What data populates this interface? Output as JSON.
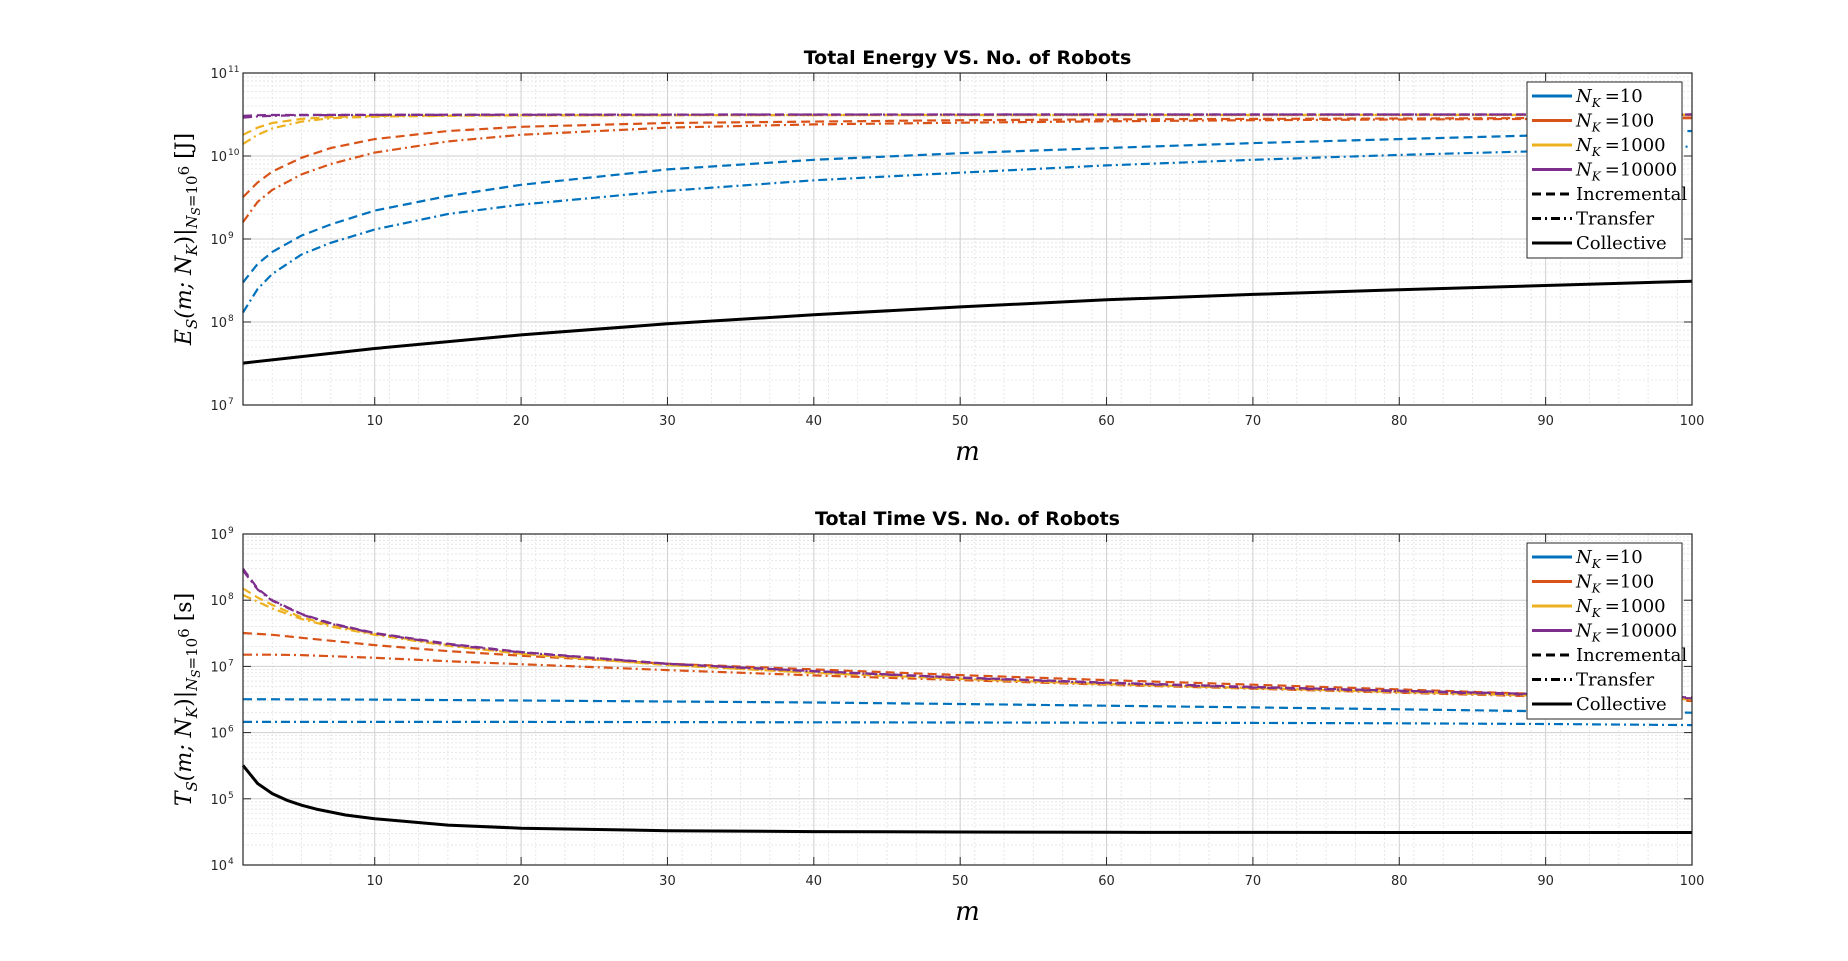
{
  "chart_data": [
    {
      "type": "line",
      "title": "Total Energy VS. No. of Robots",
      "xlabel": "m",
      "ylabel": "E_S(m; N_K)|_{N_S=10^6} [J]",
      "ylabel_parts": {
        "symbol": "E",
        "sub": "S",
        "args": "(m; N",
        "argsub": "K",
        "close": ")|",
        "cond": "N",
        "condsub": "S",
        "condeq": "=10",
        "condexp": "6",
        "unit": "[J]"
      },
      "xlim": [
        1,
        100
      ],
      "ylim_log10": [
        7,
        11
      ],
      "yscale": "log",
      "grid": true,
      "xticks": [
        "10",
        "20",
        "30",
        "40",
        "50",
        "60",
        "70",
        "80",
        "90",
        "100"
      ],
      "yticks": [
        {
          "base": "10",
          "exp": "7"
        },
        {
          "base": "10",
          "exp": "8"
        },
        {
          "base": "10",
          "exp": "9"
        },
        {
          "base": "10",
          "exp": "10"
        },
        {
          "base": "10",
          "exp": "11"
        }
      ],
      "legend_position": "top-right",
      "legend": [
        {
          "label_prefix": "N",
          "label_sub": "K",
          "label_value": "=10",
          "style": "solid",
          "color": "#0072BD"
        },
        {
          "label_prefix": "N",
          "label_sub": "K",
          "label_value": "=100",
          "style": "solid",
          "color": "#D95319"
        },
        {
          "label_prefix": "N",
          "label_sub": "K",
          "label_value": "=1000",
          "style": "solid",
          "color": "#EDB120"
        },
        {
          "label_prefix": "N",
          "label_sub": "K",
          "label_value": "=10000",
          "style": "solid",
          "color": "#7E2F8E"
        },
        {
          "label": "Incremental",
          "style": "dashed",
          "color": "#000000"
        },
        {
          "label": "Transfer",
          "style": "dashdot",
          "color": "#000000"
        },
        {
          "label": "Collective",
          "style": "solid",
          "color": "#000000"
        }
      ],
      "series": [
        {
          "group": "N_K=10",
          "method": "Incremental",
          "color": "#0072BD",
          "style": "dashed",
          "x": [
            1,
            2,
            3,
            5,
            7,
            10,
            15,
            20,
            30,
            40,
            50,
            60,
            70,
            80,
            90,
            100
          ],
          "y": [
            300000000,
            500000000,
            700000000,
            1100000000,
            1500000000,
            2200000000,
            3300000000,
            4500000000,
            6900000000,
            9000000000,
            10800000000,
            12500000000,
            14300000000,
            16000000000,
            17800000000,
            20000000000
          ]
        },
        {
          "group": "N_K=10",
          "method": "Transfer",
          "color": "#0072BD",
          "style": "dashdot",
          "x": [
            1,
            2,
            3,
            5,
            7,
            10,
            15,
            20,
            30,
            40,
            50,
            60,
            70,
            80,
            90,
            100
          ],
          "y": [
            130000000,
            250000000,
            380000000,
            650000000,
            900000000,
            1300000000,
            2000000000,
            2600000000,
            3800000000,
            5100000000,
            6300000000,
            7700000000,
            9000000000,
            10300000000,
            11500000000,
            13000000000
          ]
        },
        {
          "group": "N_K=100",
          "method": "Incremental",
          "color": "#D95319",
          "style": "dashed",
          "x": [
            1,
            2,
            3,
            5,
            7,
            10,
            15,
            20,
            30,
            40,
            50,
            60,
            70,
            80,
            90,
            100
          ],
          "y": [
            3200000000,
            4800000000,
            6500000000,
            9500000000,
            12500000000,
            16000000000,
            20000000000,
            22500000000,
            25000000000,
            26000000000,
            27000000000,
            27600000000,
            28000000000,
            28300000000,
            28600000000,
            29000000000
          ]
        },
        {
          "group": "N_K=100",
          "method": "Transfer",
          "color": "#D95319",
          "style": "dashdot",
          "x": [
            1,
            2,
            3,
            5,
            7,
            10,
            15,
            20,
            30,
            40,
            50,
            60,
            70,
            80,
            90,
            100
          ],
          "y": [
            1600000000,
            2800000000,
            3900000000,
            6000000000,
            8000000000,
            11000000000,
            15000000000,
            18000000000,
            22000000000,
            24000000000,
            25200000000,
            26200000000,
            27000000000,
            27500000000,
            28000000000,
            28500000000
          ]
        },
        {
          "group": "N_K=1000",
          "method": "Incremental",
          "color": "#EDB120",
          "style": "dashed",
          "x": [
            1,
            2,
            3,
            5,
            7,
            10,
            15,
            20,
            30,
            40,
            50,
            60,
            70,
            80,
            90,
            100
          ],
          "y": [
            18000000000,
            22000000000,
            25000000000,
            28000000000,
            29500000000,
            30300000000,
            30800000000,
            31000000000,
            31100000000,
            31200000000,
            31200000000,
            31200000000,
            31300000000,
            31300000000,
            31300000000,
            31300000000
          ]
        },
        {
          "group": "N_K=1000",
          "method": "Transfer",
          "color": "#EDB120",
          "style": "dashdot",
          "x": [
            1,
            2,
            3,
            5,
            7,
            10,
            15,
            20,
            30,
            40,
            50,
            60,
            70,
            80,
            90,
            100
          ],
          "y": [
            14000000000,
            18000000000,
            21500000000,
            26000000000,
            28500000000,
            29800000000,
            30500000000,
            30800000000,
            31000000000,
            31100000000,
            31200000000,
            31200000000,
            31200000000,
            31300000000,
            31300000000,
            31300000000
          ]
        },
        {
          "group": "N_K=10000",
          "method": "Incremental",
          "color": "#7E2F8E",
          "style": "dashed",
          "x": [
            1,
            2,
            3,
            5,
            10,
            20,
            40,
            60,
            80,
            100
          ],
          "y": [
            30500000000,
            31000000000,
            31200000000,
            31300000000,
            31400000000,
            31500000000,
            31600000000,
            31600000000,
            31600000000,
            31600000000
          ]
        },
        {
          "group": "N_K=10000",
          "method": "Transfer",
          "color": "#7E2F8E",
          "style": "dashdot",
          "x": [
            1,
            2,
            3,
            5,
            10,
            20,
            40,
            60,
            80,
            100
          ],
          "y": [
            29000000000,
            30000000000,
            30500000000,
            31000000000,
            31300000000,
            31400000000,
            31500000000,
            31600000000,
            31600000000,
            31600000000
          ]
        },
        {
          "group": "all",
          "method": "Collective",
          "color": "#000000",
          "style": "solid",
          "x": [
            1,
            10,
            20,
            30,
            40,
            50,
            60,
            70,
            80,
            90,
            100
          ],
          "y": [
            32000000,
            48000000,
            70000000,
            95000000,
            122000000,
            152000000,
            185000000,
            215000000,
            245000000,
            275000000,
            310000000
          ]
        }
      ]
    },
    {
      "type": "line",
      "title": "Total Time VS. No. of Robots",
      "xlabel": "m",
      "ylabel": "T_S(m; N_K)|_{N_S=10^6} [s]",
      "ylabel_parts": {
        "symbol": "T",
        "sub": "S",
        "args": "(m; N",
        "argsub": "K",
        "close": ")|",
        "cond": "N",
        "condsub": "S",
        "condeq": "=10",
        "condexp": "6",
        "unit": "[s]"
      },
      "xlim": [
        1,
        100
      ],
      "ylim_log10": [
        4,
        9
      ],
      "yscale": "log",
      "grid": true,
      "xticks": [
        "10",
        "20",
        "30",
        "40",
        "50",
        "60",
        "70",
        "80",
        "90",
        "100"
      ],
      "yticks": [
        {
          "base": "10",
          "exp": "4"
        },
        {
          "base": "10",
          "exp": "5"
        },
        {
          "base": "10",
          "exp": "6"
        },
        {
          "base": "10",
          "exp": "7"
        },
        {
          "base": "10",
          "exp": "8"
        },
        {
          "base": "10",
          "exp": "9"
        }
      ],
      "legend_position": "top-right",
      "legend": [
        {
          "label_prefix": "N",
          "label_sub": "K",
          "label_value": "=10",
          "style": "solid",
          "color": "#0072BD"
        },
        {
          "label_prefix": "N",
          "label_sub": "K",
          "label_value": "=100",
          "style": "solid",
          "color": "#D95319"
        },
        {
          "label_prefix": "N",
          "label_sub": "K",
          "label_value": "=1000",
          "style": "solid",
          "color": "#EDB120"
        },
        {
          "label_prefix": "N",
          "label_sub": "K",
          "label_value": "=10000",
          "style": "solid",
          "color": "#7E2F8E"
        },
        {
          "label": "Incremental",
          "style": "dashed",
          "color": "#000000"
        },
        {
          "label": "Transfer",
          "style": "dashdot",
          "color": "#000000"
        },
        {
          "label": "Collective",
          "style": "solid",
          "color": "#000000"
        }
      ],
      "series": [
        {
          "group": "N_K=10",
          "method": "Incremental",
          "color": "#0072BD",
          "style": "dashed",
          "x": [
            1,
            10,
            20,
            30,
            40,
            50,
            60,
            70,
            80,
            90,
            100
          ],
          "y": [
            3200000,
            3150000,
            3050000,
            2950000,
            2850000,
            2700000,
            2550000,
            2400000,
            2250000,
            2100000,
            2000000
          ]
        },
        {
          "group": "N_K=10",
          "method": "Transfer",
          "color": "#0072BD",
          "style": "dashdot",
          "x": [
            1,
            10,
            20,
            30,
            40,
            50,
            60,
            70,
            80,
            90,
            100
          ],
          "y": [
            1450000,
            1450000,
            1450000,
            1440000,
            1430000,
            1420000,
            1410000,
            1400000,
            1380000,
            1350000,
            1300000
          ]
        },
        {
          "group": "N_K=100",
          "method": "Incremental",
          "color": "#D95319",
          "style": "dashed",
          "x": [
            1,
            3,
            5,
            10,
            15,
            20,
            30,
            40,
            50,
            60,
            70,
            80,
            90,
            100
          ],
          "y": [
            32000000,
            30000000,
            27000000,
            21000000,
            17000000,
            14500000,
            11000000,
            9000000,
            7400000,
            6200000,
            5300000,
            4500000,
            3800000,
            3200000
          ]
        },
        {
          "group": "N_K=100",
          "method": "Transfer",
          "color": "#D95319",
          "style": "dashdot",
          "x": [
            1,
            3,
            5,
            10,
            15,
            20,
            30,
            40,
            50,
            60,
            70,
            80,
            90,
            100
          ],
          "y": [
            15000000,
            15000000,
            14800000,
            13500000,
            12000000,
            10800000,
            8800000,
            7300000,
            6200000,
            5300000,
            4600000,
            4000000,
            3500000,
            3000000
          ]
        },
        {
          "group": "N_K=1000",
          "method": "Incremental",
          "color": "#EDB120",
          "style": "dashed",
          "x": [
            1,
            2,
            3,
            5,
            7,
            10,
            15,
            20,
            30,
            40,
            50,
            60,
            70,
            80,
            90,
            100
          ],
          "y": [
            150000000,
            110000000,
            85000000,
            55000000,
            42000000,
            31000000,
            21000000,
            15500000,
            10500000,
            8000000,
            6500000,
            5400000,
            4700000,
            4100000,
            3600000,
            3200000
          ]
        },
        {
          "group": "N_K=1000",
          "method": "Transfer",
          "color": "#EDB120",
          "style": "dashdot",
          "x": [
            1,
            2,
            3,
            5,
            7,
            10,
            15,
            20,
            30,
            40,
            50,
            60,
            70,
            80,
            90,
            100
          ],
          "y": [
            120000000,
            95000000,
            75000000,
            52000000,
            40000000,
            30000000,
            20500000,
            15500000,
            10500000,
            8000000,
            6500000,
            5400000,
            4700000,
            4100000,
            3600000,
            3200000
          ]
        },
        {
          "group": "N_K=10000",
          "method": "Incremental",
          "color": "#7E2F8E",
          "style": "dashed",
          "x": [
            1,
            2,
            3,
            5,
            7,
            10,
            15,
            20,
            30,
            40,
            50,
            60,
            70,
            80,
            90,
            100
          ],
          "y": [
            300000000,
            150000000,
            100000000,
            62000000,
            45000000,
            32000000,
            22000000,
            16500000,
            11000000,
            8500000,
            6800000,
            5700000,
            4900000,
            4300000,
            3800000,
            3400000
          ]
        },
        {
          "group": "N_K=10000",
          "method": "Transfer",
          "color": "#7E2F8E",
          "style": "dashdot",
          "x": [
            1,
            2,
            3,
            5,
            7,
            10,
            15,
            20,
            30,
            40,
            50,
            60,
            70,
            80,
            90,
            100
          ],
          "y": [
            280000000,
            145000000,
            98000000,
            61000000,
            44000000,
            31500000,
            21500000,
            16300000,
            10900000,
            8400000,
            6700000,
            5600000,
            4800000,
            4200000,
            3700000,
            3300000
          ]
        },
        {
          "group": "all",
          "method": "Collective",
          "color": "#000000",
          "style": "solid",
          "x": [
            1,
            2,
            3,
            4,
            5,
            6,
            8,
            10,
            15,
            20,
            30,
            40,
            50,
            60,
            70,
            80,
            90,
            100
          ],
          "y": [
            320000,
            170000,
            120000,
            95000,
            80000,
            70000,
            57000,
            50000,
            40000,
            36000,
            33000,
            32000,
            31500,
            31200,
            31100,
            31000,
            31000,
            31000
          ]
        }
      ]
    }
  ]
}
